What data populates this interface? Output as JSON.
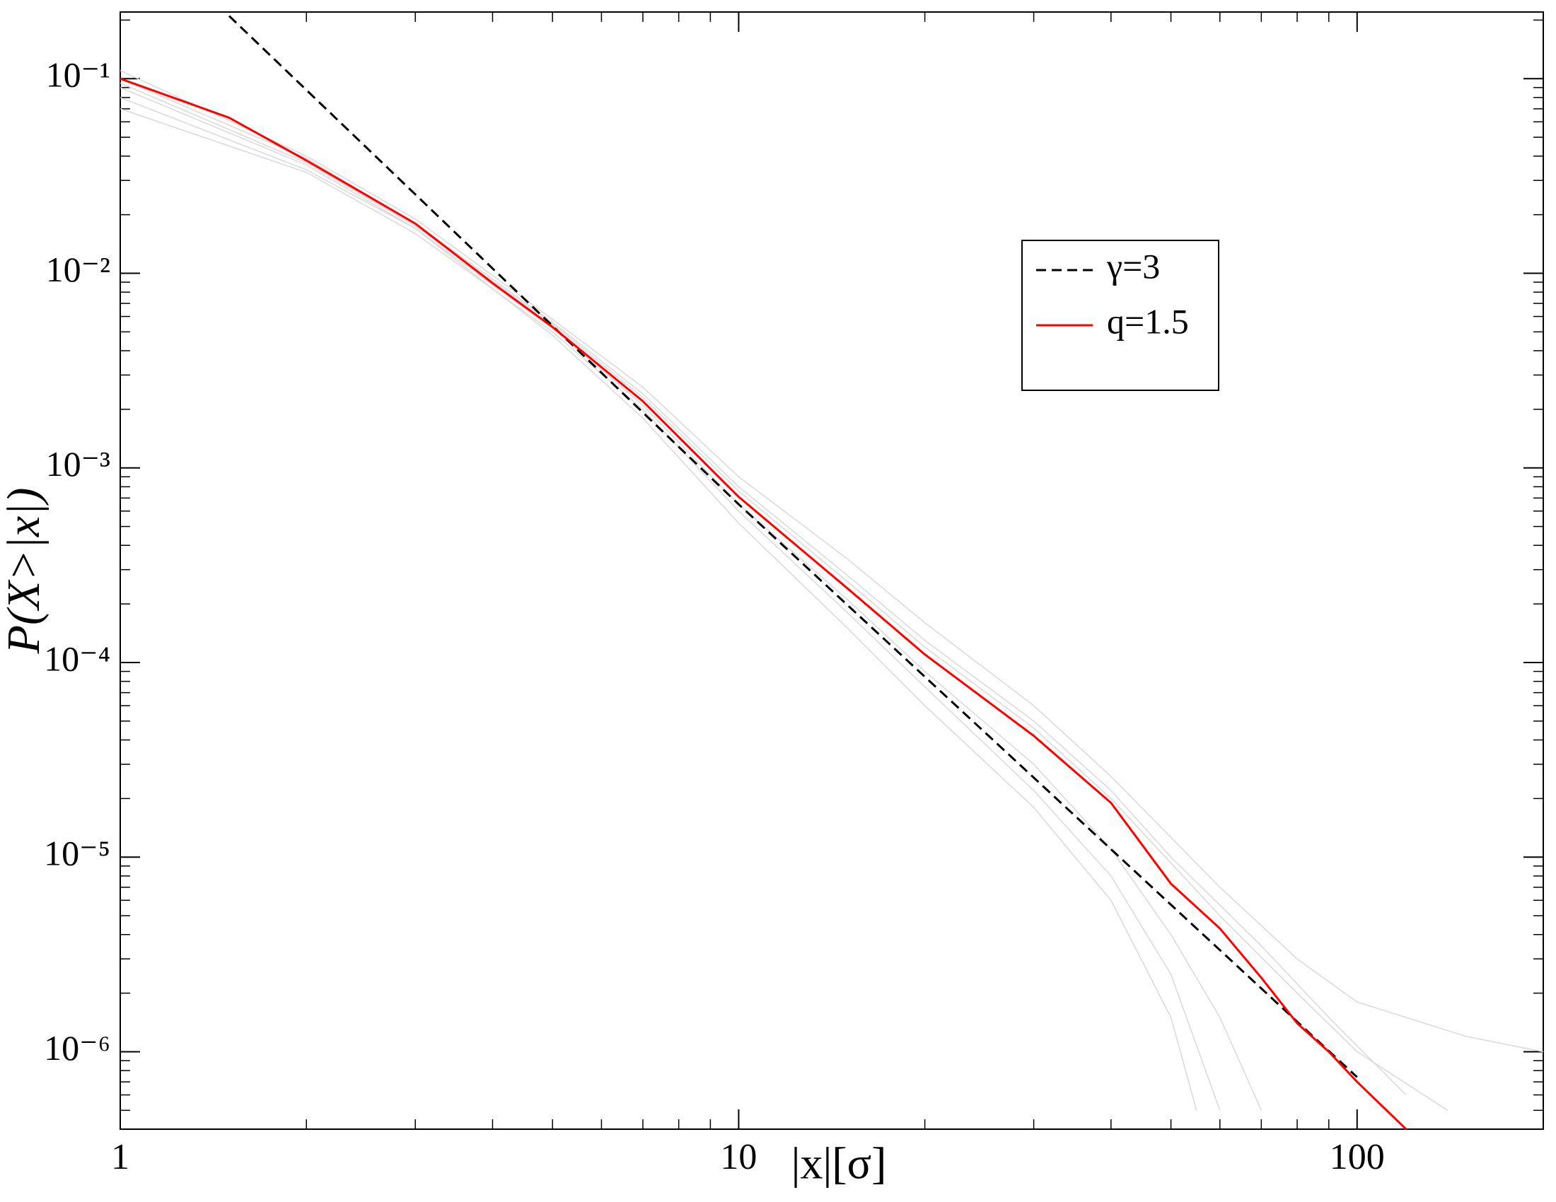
{
  "chart_data": {
    "type": "line",
    "xlabel": "|x|[σ]",
    "ylabel": "P(X>|x|)",
    "log_x": true,
    "log_y": true,
    "xlim": [
      1,
      200
    ],
    "ylim": [
      4e-07,
      0.22
    ],
    "xticks": [
      1,
      10,
      100
    ],
    "yticks": [
      {
        "value": 1e-06,
        "label": "10⁻⁶"
      },
      {
        "value": 1e-05,
        "label": "10⁻⁵"
      },
      {
        "value": 0.0001,
        "label": "10⁻⁴"
      },
      {
        "value": 0.001,
        "label": "10⁻³"
      },
      {
        "value": 0.01,
        "label": "10⁻²"
      },
      {
        "value": 0.1,
        "label": "10⁻¹"
      }
    ],
    "xminorticks": [
      2,
      3,
      4,
      5,
      6,
      7,
      8,
      9,
      20,
      30,
      40,
      50,
      60,
      70,
      80,
      90,
      200
    ],
    "yminorticks": [
      5e-07,
      6e-07,
      7e-07,
      8e-07,
      9e-07,
      2e-06,
      3e-06,
      4e-06,
      5e-06,
      6e-06,
      7e-06,
      8e-06,
      9e-06,
      2e-05,
      3e-05,
      4e-05,
      5e-05,
      6e-05,
      7e-05,
      8e-05,
      9e-05,
      0.0002,
      0.0003,
      0.0004,
      0.0005,
      0.0006,
      0.0007,
      0.0008,
      0.0009,
      0.002,
      0.003,
      0.004,
      0.005,
      0.006,
      0.007,
      0.008,
      0.009,
      0.02,
      0.03,
      0.04,
      0.05,
      0.06,
      0.07,
      0.08,
      0.09,
      0.2
    ],
    "legend": "upper right",
    "series": [
      {
        "color": "#d9d9d9",
        "x": [
          1,
          2,
          3,
          5,
          7,
          10,
          15,
          20,
          30,
          40,
          50,
          55
        ],
        "values": [
          0.09,
          0.036,
          0.017,
          0.0048,
          0.0018,
          0.00052,
          0.00015,
          6e-05,
          1.8e-05,
          6e-06,
          1.5e-06,
          5e-07
        ]
      },
      {
        "color": "#d9d9d9",
        "x": [
          1,
          2,
          3,
          5,
          7,
          10,
          15,
          20,
          30,
          40,
          60,
          80,
          100,
          150,
          200
        ],
        "values": [
          0.11,
          0.04,
          0.019,
          0.0058,
          0.0026,
          0.0009,
          0.00034,
          0.00016,
          6e-05,
          2.6e-05,
          7e-06,
          3e-06,
          1.8e-06,
          1.2e-06,
          1e-06
        ]
      },
      {
        "color": "#d9d9d9",
        "x": [
          1,
          2,
          3,
          5,
          7,
          10,
          15,
          20,
          30,
          40,
          50,
          60,
          70
        ],
        "values": [
          0.08,
          0.034,
          0.017,
          0.0052,
          0.0021,
          0.00065,
          0.00021,
          9e-05,
          3e-05,
          1.1e-05,
          4e-06,
          1.5e-06,
          5e-07
        ]
      },
      {
        "color": "#d9d9d9",
        "x": [
          1,
          2,
          3,
          5,
          7,
          10,
          15,
          20,
          30,
          40,
          50,
          70,
          90,
          120
        ],
        "values": [
          0.1,
          0.039,
          0.018,
          0.0056,
          0.0024,
          0.0008,
          0.00028,
          0.00013,
          5e-05,
          2.2e-05,
          1e-05,
          3.5e-06,
          1.5e-06,
          6e-07
        ]
      },
      {
        "color": "#d9d9d9",
        "x": [
          1,
          2,
          3,
          5,
          7,
          10,
          15,
          20,
          30,
          40,
          50,
          60
        ],
        "values": [
          0.07,
          0.033,
          0.016,
          0.005,
          0.002,
          0.0006,
          0.00018,
          7.5e-05,
          2.2e-05,
          8e-06,
          2.5e-06,
          5e-07
        ]
      },
      {
        "color": "#d9d9d9",
        "x": [
          1,
          2,
          3,
          5,
          7,
          10,
          15,
          20,
          30,
          40,
          60,
          80,
          100,
          140
        ],
        "values": [
          0.095,
          0.037,
          0.0175,
          0.0055,
          0.0023,
          0.00076,
          0.00026,
          0.00012,
          4.6e-05,
          2e-05,
          5e-06,
          2e-06,
          1e-06,
          5e-07
        ]
      },
      {
        "name": "γ=3",
        "color": "#000000",
        "dash": true,
        "x": [
          1.5,
          10,
          100
        ],
        "values": [
          0.21,
          0.00065,
          7.4e-07
        ]
      },
      {
        "name": "q=1.5",
        "color": "#ff0000",
        "x": [
          1,
          1.5,
          2,
          3,
          4,
          5,
          7,
          10,
          15,
          20,
          30,
          40,
          50,
          60,
          70,
          80,
          90,
          100,
          120
        ],
        "values": [
          0.1,
          0.063,
          0.038,
          0.018,
          0.0089,
          0.0053,
          0.0022,
          0.00071,
          0.00024,
          0.00011,
          4.2e-05,
          1.9e-05,
          7.3e-06,
          4.3e-06,
          2.4e-06,
          1.4e-06,
          1e-06,
          7e-07,
          4e-07
        ]
      }
    ]
  }
}
